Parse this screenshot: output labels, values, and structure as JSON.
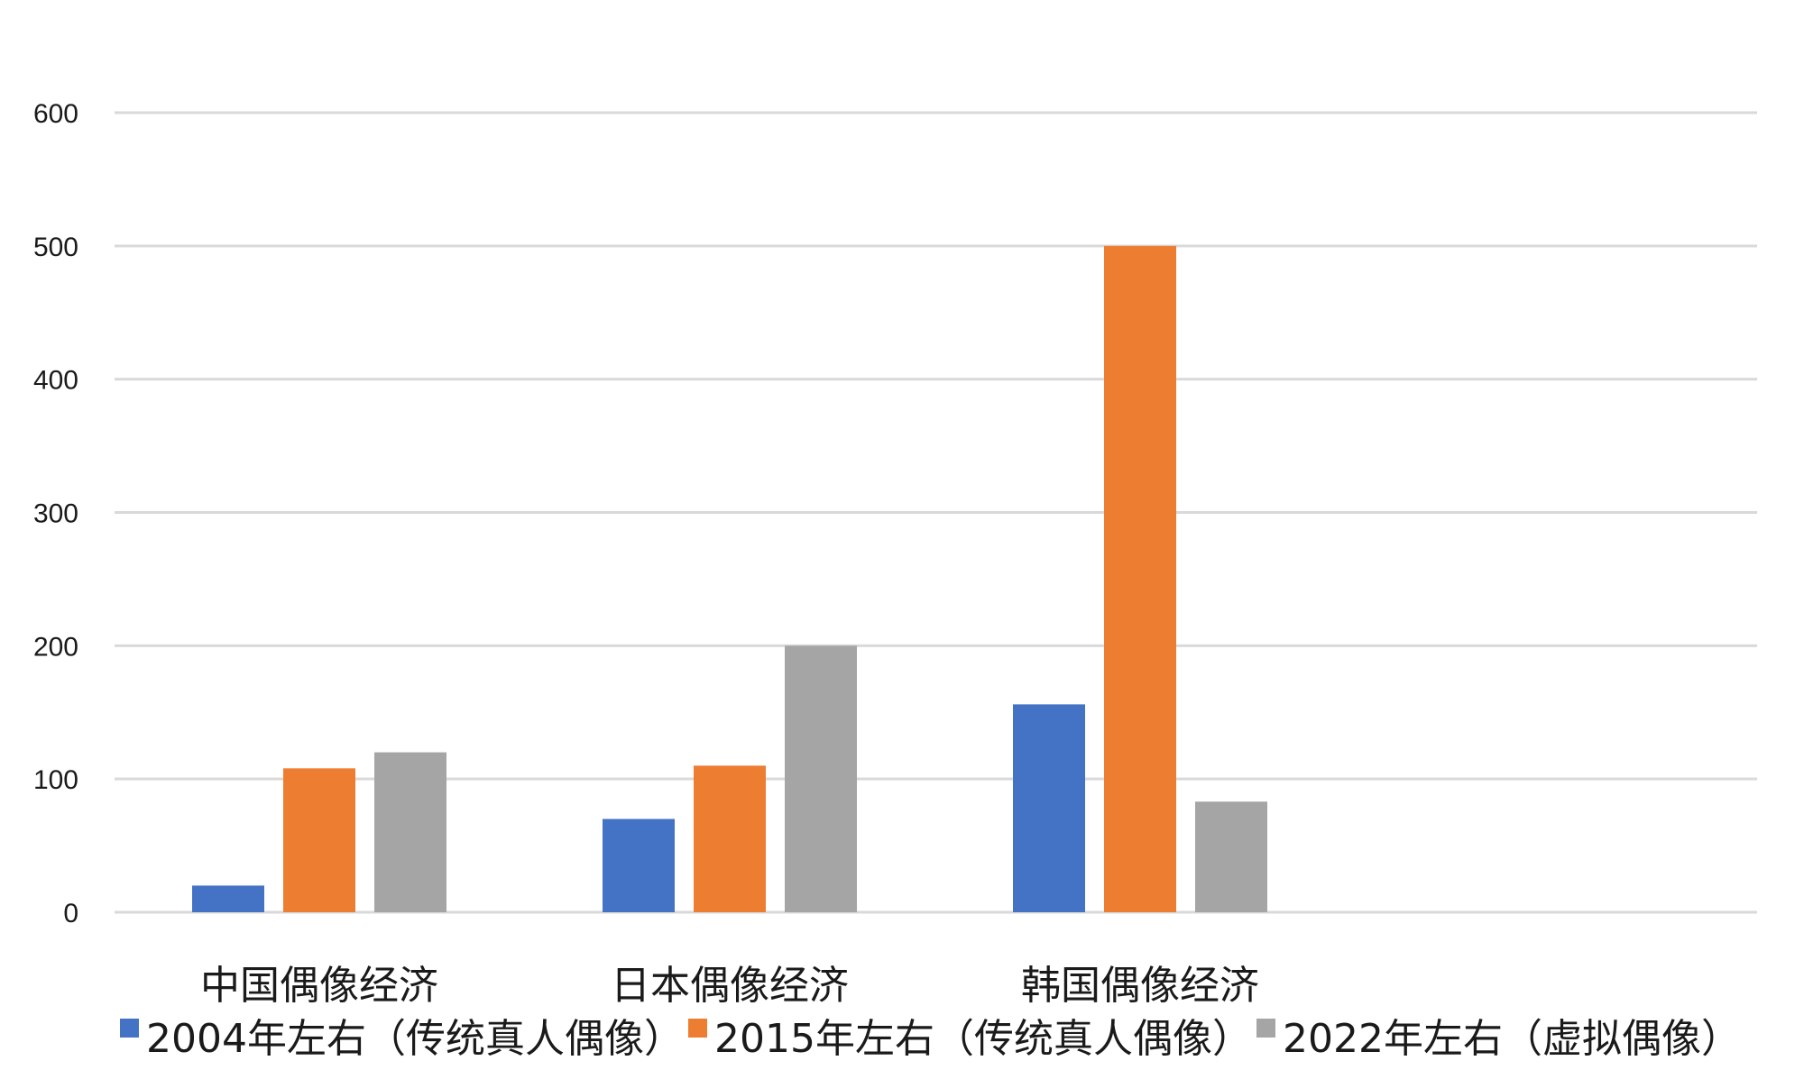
{
  "chart_data": {
    "type": "bar",
    "title": "",
    "xlabel": "",
    "ylabel": "",
    "categories": [
      "中国偶像经济",
      "日本偶像经济",
      "韩国偶像经济"
    ],
    "series": [
      {
        "name": "2004年左右（传统真人偶像）",
        "color": "#4472c4",
        "values": [
          20,
          70,
          156
        ]
      },
      {
        "name": "2015年左右（传统真人偶像）",
        "color": "#ed7d31",
        "values": [
          108,
          110,
          500
        ]
      },
      {
        "name": "2022年左右（虚拟偶像）",
        "color": "#a5a5a5",
        "values": [
          120,
          200,
          83
        ]
      }
    ],
    "ylim": [
      0,
      600
    ],
    "yticks": [
      0,
      100,
      200,
      300,
      400,
      500,
      600
    ],
    "grid": true,
    "legend_position": "bottom"
  }
}
